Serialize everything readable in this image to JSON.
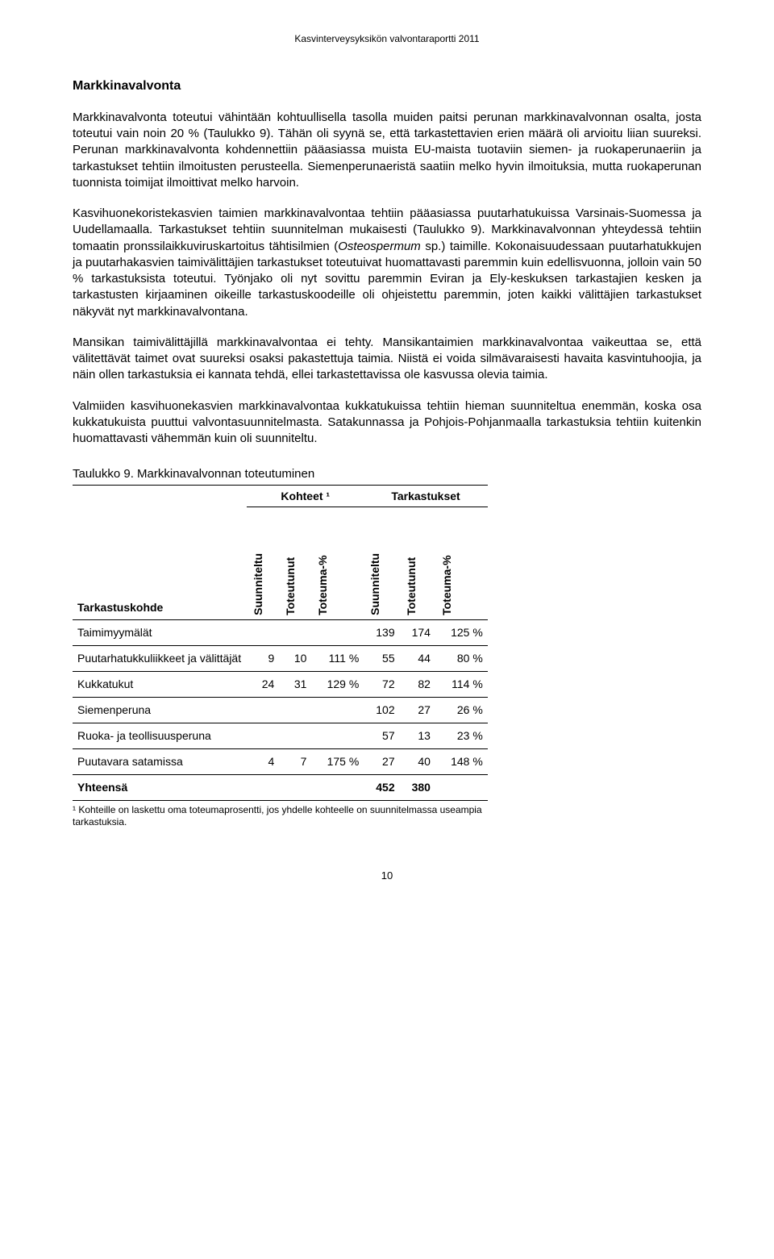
{
  "header": "Kasvinterveysyksikön valvontaraportti 2011",
  "section_title": "Markkinavalvonta",
  "paragraphs": [
    "Markkinavalvonta toteutui vähintään kohtuullisella tasolla muiden paitsi perunan markkinavalvonnan osalta, josta toteutui vain noin 20 % (Taulukko 9). Tähän oli syynä se, että tarkastettavien erien määrä oli arvioitu liian suureksi. Perunan markkinavalvonta kohdennettiin pääasiassa muista EU-maista tuotaviin siemen- ja ruokaperunaeriin ja tarkastukset tehtiin ilmoitusten perusteella. Siemenperunaeristä saatiin melko hyvin ilmoituksia, mutta ruokaperunan tuonnista toimijat ilmoittivat melko harvoin.",
    "Kasvihuonekoristekasvien taimien markkinavalvontaa tehtiin pääasiassa puutarhatukuissa Varsinais-Suomessa ja Uudellamaalla. Tarkastukset tehtiin suunnitelman mukaisesti (Taulukko 9). Markkinavalvonnan yhteydessä tehtiin tomaatin pronssilaikkuviruskartoitus tähtisilmien (Osteospermum sp.) taimille. Kokonaisuudessaan puutarhatukkujen ja puutarhakasvien taimivälittäjien tarkastukset toteutuivat huomattavasti paremmin kuin edellisvuonna, jolloin vain 50 % tarkastuksista toteutui. Työnjako oli nyt sovittu paremmin Eviran ja Ely-keskuksen tarkastajien kesken ja tarkastusten kirjaaminen oikeille tarkastuskoodeille oli ohjeistettu paremmin, joten kaikki välittäjien tarkastukset näkyvät nyt markkinavalvontana.",
    "Mansikan taimivälittäjillä markkinavalvontaa ei tehty. Mansikantaimien markkinavalvontaa vaikeuttaa se, että välitettävät taimet ovat suureksi osaksi pakastettuja taimia. Niistä ei voida silmävaraisesti havaita kasvintuhoojia, ja näin ollen tarkastuksia ei kannata tehdä, ellei tarkastettavissa ole kasvussa olevia taimia.",
    "Valmiiden kasvihuonekasvien markkinavalvontaa kukkatukuissa tehtiin hieman suunniteltua enemmän, koska osa kukkatukuista puuttui valvontasuunnitelmasta. Satakunnassa ja Pohjois-Pohjanmaalla tarkastuksia tehtiin kuitenkin huomattavasti vähemmän kuin oli suunniteltu."
  ],
  "p2_italic_label": "Osteospermum",
  "table": {
    "title": "Taulukko 9. Markkinavalvonnan toteutuminen",
    "group_headers": [
      "",
      "Kohteet ¹",
      "Tarkastukset"
    ],
    "col_headers": [
      "Tarkastuskohde",
      "Suunniteltu",
      "Toteutunut",
      "Toteuma-%",
      "Suunniteltu",
      "Toteutunut",
      "Toteuma-%"
    ],
    "rows": [
      {
        "label": "Taimimyymälät",
        "c": [
          "",
          "",
          "",
          "139",
          "174",
          "125 %"
        ]
      },
      {
        "label": "Puutarhatukkuliikkeet ja välittäjät",
        "c": [
          "9",
          "10",
          "111 %",
          "55",
          "44",
          "80 %"
        ]
      },
      {
        "label": "Kukkatukut",
        "c": [
          "24",
          "31",
          "129 %",
          "72",
          "82",
          "114 %"
        ]
      },
      {
        "label": "Siemenperuna",
        "c": [
          "",
          "",
          "",
          "102",
          "27",
          "26 %"
        ]
      },
      {
        "label": "Ruoka- ja teollisuusperuna",
        "c": [
          "",
          "",
          "",
          "57",
          "13",
          "23 %"
        ]
      },
      {
        "label": "Puutavara satamissa",
        "c": [
          "4",
          "7",
          "175 %",
          "27",
          "40",
          "148 %"
        ]
      }
    ],
    "total": {
      "label": "Yhteensä",
      "c": [
        "",
        "",
        "",
        "452",
        "380",
        ""
      ]
    },
    "footnote": "¹ Kohteille on laskettu oma toteumaprosentti, jos yhdelle kohteelle on suunnitelmassa useampia tarkastuksia."
  },
  "page_number": "10",
  "colors": {
    "text": "#000000",
    "background": "#ffffff",
    "border": "#000000"
  }
}
